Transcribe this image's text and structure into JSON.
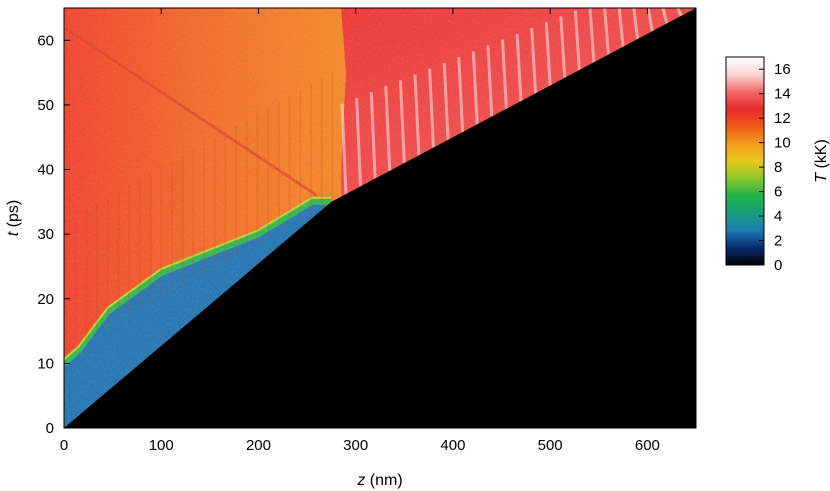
{
  "chart_data": {
    "type": "heatmap",
    "title": "",
    "xlabel": {
      "symbol": "z",
      "unit": "(nm)"
    },
    "ylabel": {
      "symbol": "t",
      "unit": "(ps)"
    },
    "xlim": [
      0,
      650
    ],
    "ylim": [
      0,
      65
    ],
    "xticks": [
      "0",
      "100",
      "200",
      "300",
      "400",
      "500",
      "600"
    ],
    "yticks": [
      "0",
      "10",
      "20",
      "30",
      "40",
      "50",
      "60"
    ],
    "xtick_values": [
      0,
      100,
      200,
      300,
      400,
      500,
      600
    ],
    "ytick_values": [
      0,
      10,
      20,
      30,
      40,
      50,
      60
    ],
    "grid": false,
    "colorbar": {
      "label": {
        "symbol": "T",
        "unit": "(kK)"
      },
      "range": [
        0,
        17
      ],
      "ticks": [
        "0",
        "2",
        "4",
        "6",
        "8",
        "10",
        "12",
        "14",
        "16"
      ],
      "tick_values": [
        0,
        2,
        4,
        6,
        8,
        10,
        12,
        14,
        16
      ],
      "palette": [
        "#000000",
        "#0a2a6e",
        "#1e7bb4",
        "#16a07a",
        "#22b24a",
        "#8cc828",
        "#e8c81e",
        "#f39a1c",
        "#ee5a18",
        "#e62a2a",
        "#f26a6a",
        "#fbd6d6",
        "#ffffff"
      ]
    },
    "regions": [
      {
        "name": "unperturbed",
        "color": "#000000",
        "boundary_points": [
          [
            0,
            0
          ],
          [
            275,
            35
          ],
          [
            650,
            65
          ]
        ]
      },
      {
        "name": "cold-layer",
        "color": "#1e6fae",
        "boundary_points": [
          [
            0,
            10
          ],
          [
            15,
            12
          ],
          [
            45,
            18
          ],
          [
            100,
            24
          ],
          [
            200,
            30
          ],
          [
            255,
            35
          ],
          [
            275,
            35
          ]
        ]
      },
      {
        "name": "hot-orange",
        "color": "#ef9a22",
        "boundary_points": [
          [
            0,
            12
          ],
          [
            100,
            24
          ],
          [
            275,
            35
          ],
          [
            285,
            40
          ],
          [
            290,
            55
          ],
          [
            285,
            65
          ]
        ]
      },
      {
        "name": "hot-red",
        "color": "#e83a2a",
        "boundary_points": [
          [
            285,
            35
          ],
          [
            650,
            65
          ]
        ]
      },
      {
        "name": "reflected-wave",
        "color": "#d83a20",
        "line_points": [
          [
            0,
            62
          ],
          [
            260,
            36
          ]
        ]
      }
    ]
  }
}
